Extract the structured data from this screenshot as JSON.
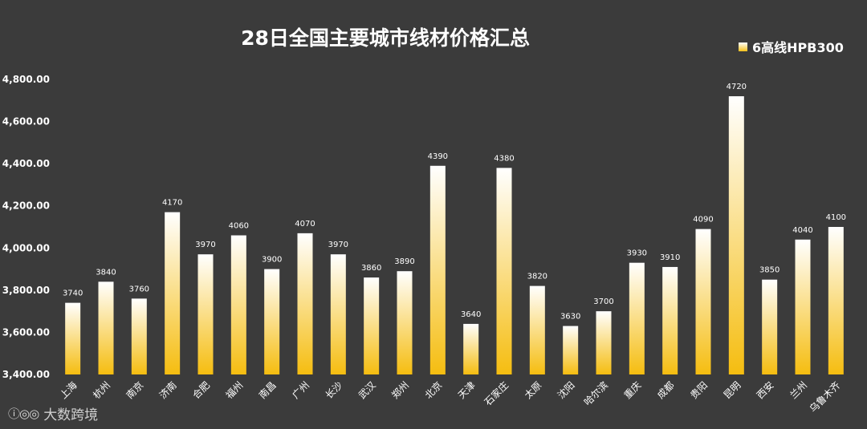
{
  "chart_data": {
    "type": "bar",
    "title": "28日全国主要城市线材价格汇总",
    "legend": {
      "label": "6高线HPB300",
      "position": "top-right"
    },
    "categories": [
      "上海",
      "杭州",
      "南京",
      "济南",
      "合肥",
      "福州",
      "南昌",
      "广州",
      "长沙",
      "武汉",
      "郑州",
      "北京",
      "天津",
      "石家庄",
      "太原",
      "沈阳",
      "哈尔滨",
      "重庆",
      "成都",
      "贵阳",
      "昆明",
      "西安",
      "兰州",
      "乌鲁木齐"
    ],
    "series": [
      {
        "name": "6高线HPB300",
        "values": [
          3740,
          3840,
          3760,
          4170,
          3970,
          4060,
          3900,
          4070,
          3970,
          3860,
          3890,
          4390,
          3640,
          4380,
          3820,
          3630,
          3700,
          3930,
          3910,
          4090,
          4720,
          3850,
          4040,
          4100
        ]
      }
    ],
    "ylim": [
      3400,
      4800
    ],
    "yticks": [
      3400,
      3600,
      3800,
      4000,
      4200,
      4400,
      4600,
      4800
    ],
    "ytick_labels": [
      "3,400.00",
      "3,600.00",
      "3,800.00",
      "4,000.00",
      "4,200.00",
      "4,400.00",
      "4,600.00",
      "4,800.00"
    ],
    "grid": false,
    "colors": {
      "bar_top": "#ffffff",
      "bar_bottom": "#f5bd10",
      "background": "#3b3b3b",
      "text": "#ffffff"
    }
  },
  "watermark": {
    "logo": "ⓘ◎◎",
    "text": "大数跨境"
  }
}
